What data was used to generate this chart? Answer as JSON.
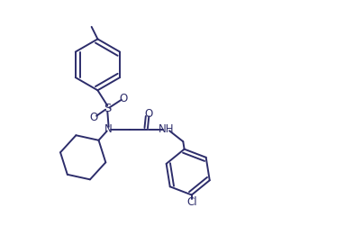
{
  "bg_color": "#ffffff",
  "line_color": "#2d2d6b",
  "line_width": 1.4,
  "font_size": 8.5,
  "figsize": [
    3.93,
    2.71
  ],
  "dpi": 100,
  "xlim": [
    0.0,
    1.0
  ],
  "ylim": [
    0.0,
    1.0
  ]
}
